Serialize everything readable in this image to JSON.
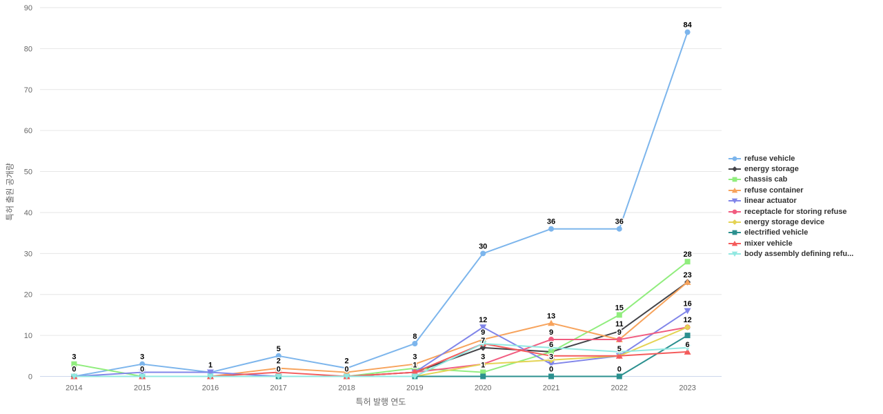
{
  "chart_data": {
    "type": "line",
    "title": "",
    "xlabel": "특허 발행 연도",
    "ylabel": "특허 출원 공개량",
    "x_categories": [
      "2014",
      "2015",
      "2016",
      "2017",
      "2018",
      "2019",
      "2020",
      "2021",
      "2022",
      "2023"
    ],
    "ylim": [
      0,
      90
    ],
    "y_ticks": [
      0,
      10,
      20,
      30,
      40,
      50,
      60,
      70,
      80,
      90
    ],
    "grid": true,
    "legend_position": "right",
    "grid_color": "#e6e6e6",
    "axis_line_color": "#ccd6eb",
    "axis_text_color": "#666666",
    "legend_text_color": "#333333",
    "data_label_color": "#000000",
    "series": [
      {
        "name": "refuse vehicle",
        "color": "#7cb5ec",
        "marker": "circle",
        "values": [
          0,
          3,
          1,
          5,
          2,
          8,
          30,
          36,
          36,
          84
        ],
        "shown_labels": [
          "0",
          "3",
          "1",
          "5",
          "2",
          "8",
          "30",
          "36",
          "36",
          "84"
        ]
      },
      {
        "name": "energy storage",
        "color": "#434348",
        "marker": "diamond",
        "values": [
          0,
          0,
          0,
          0,
          0,
          1,
          7,
          6,
          11,
          23
        ],
        "shown_labels": [
          null,
          "0",
          null,
          "0",
          "0",
          "1",
          "7",
          "6",
          "11",
          "23"
        ]
      },
      {
        "name": "chassis cab",
        "color": "#90ed7d",
        "marker": "square",
        "values": [
          3,
          0,
          0,
          0,
          0,
          2,
          1,
          6,
          15,
          28
        ],
        "shown_labels": [
          "3",
          null,
          null,
          null,
          null,
          null,
          "1",
          null,
          "15",
          "28"
        ]
      },
      {
        "name": "refuse container",
        "color": "#f7a35c",
        "marker": "triangle",
        "values": [
          0,
          0,
          0,
          2,
          1,
          3,
          9,
          13,
          9,
          23
        ],
        "shown_labels": [
          null,
          null,
          null,
          "2",
          null,
          "3",
          "9",
          "13",
          "9",
          null
        ]
      },
      {
        "name": "linear actuator",
        "color": "#8085e9",
        "marker": "triangle-down",
        "values": [
          0,
          1,
          1,
          0,
          0,
          1,
          12,
          3,
          5,
          16
        ],
        "shown_labels": [
          null,
          null,
          null,
          null,
          null,
          null,
          "12",
          "3",
          "5",
          "16"
        ]
      },
      {
        "name": "receptacle for storing refuse",
        "color": "#f15c80",
        "marker": "circle",
        "values": [
          0,
          0,
          0,
          0,
          0,
          1,
          3,
          9,
          9,
          12
        ],
        "shown_labels": [
          null,
          null,
          null,
          null,
          null,
          null,
          "3",
          "9",
          null,
          "12"
        ]
      },
      {
        "name": "energy storage device",
        "color": "#e4d354",
        "marker": "diamond",
        "values": [
          0,
          0,
          0,
          0,
          0,
          0,
          3,
          4,
          5,
          12
        ],
        "shown_labels": [
          null,
          null,
          null,
          null,
          null,
          null,
          null,
          null,
          null,
          null
        ]
      },
      {
        "name": "electrified vehicle",
        "color": "#2b908f",
        "marker": "square",
        "values": [
          0,
          0,
          0,
          0,
          0,
          0,
          0,
          0,
          0,
          10
        ],
        "shown_labels": [
          null,
          null,
          null,
          null,
          null,
          null,
          null,
          "0",
          "0",
          null
        ]
      },
      {
        "name": "mixer vehicle",
        "color": "#f45b5b",
        "marker": "triangle",
        "values": [
          0,
          0,
          0,
          1,
          0,
          1,
          8,
          5,
          5,
          6
        ],
        "shown_labels": [
          null,
          null,
          null,
          null,
          null,
          null,
          null,
          null,
          null,
          "6"
        ]
      },
      {
        "name": "body assembly defining refu...",
        "color": "#91e8e1",
        "marker": "triangle-down",
        "values": [
          0,
          0,
          0,
          0,
          0,
          0,
          8,
          7,
          6,
          7
        ],
        "shown_labels": [
          null,
          null,
          null,
          null,
          null,
          null,
          null,
          null,
          null,
          null
        ]
      }
    ]
  }
}
